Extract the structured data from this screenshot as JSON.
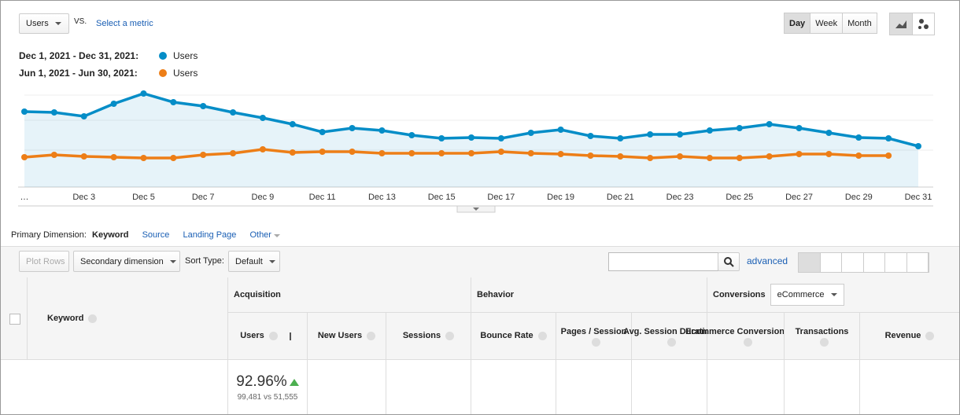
{
  "controls": {
    "metric": "Users",
    "vs": "VS.",
    "select_metric": "Select a metric",
    "periods": [
      "Day",
      "Week",
      "Month"
    ],
    "active_period": "Day"
  },
  "chart_data": {
    "type": "line",
    "categories": [
      "…",
      null,
      "Dec 3",
      null,
      "Dec 5",
      null,
      "Dec 7",
      null,
      "Dec 9",
      null,
      "Dec 11",
      null,
      "Dec 13",
      null,
      "Dec 15",
      null,
      "Dec 17",
      null,
      "Dec 19",
      null,
      "Dec 21",
      null,
      "Dec 23",
      null,
      "Dec 25",
      null,
      "Dec 27",
      null,
      "Dec 29",
      null,
      "Dec 31"
    ],
    "series": [
      {
        "name": "Users",
        "range": "Dec 1, 2021 - Dec 31, 2021:",
        "color": "#058dc7",
        "area": true,
        "values": [
          96,
          95,
          90,
          106,
          119,
          108,
          103,
          95,
          88,
          80,
          70,
          75,
          72,
          66,
          62,
          63,
          62,
          69,
          73,
          65,
          62,
          67,
          67,
          72,
          75,
          80,
          75,
          69,
          63,
          62,
          52
        ]
      },
      {
        "name": "Users",
        "range": "Jun 1, 2021 - Jun 30, 2021:",
        "color": "#ed7e17",
        "area": false,
        "values": [
          38,
          41,
          39,
          38,
          37,
          37,
          41,
          43,
          48,
          44,
          45,
          45,
          43,
          43,
          43,
          43,
          45,
          43,
          42,
          40,
          39,
          37,
          39,
          37,
          37,
          39,
          42,
          42,
          40,
          40,
          null
        ]
      }
    ],
    "ylim": [
      0,
      137
    ]
  },
  "dimensions": {
    "label": "Primary Dimension:",
    "active": "Keyword",
    "links": [
      "Source",
      "Landing Page",
      "Other"
    ]
  },
  "toolbar": {
    "plot_rows": "Plot Rows",
    "secondary": "Secondary dimension",
    "sort_label": "Sort Type:",
    "sort_value": "Default",
    "advanced": "advanced"
  },
  "table": {
    "keyword": "Keyword",
    "groups": [
      "Acquisition",
      "Behavior",
      "Conversions"
    ],
    "conversion_select": "eCommerce",
    "columns": [
      "Users",
      "New Users",
      "Sessions",
      "Bounce Rate",
      "Pages / Session",
      "Avg. Session Duration",
      "Ecommerce Conversion Rate",
      "Transactions",
      "Revenue"
    ],
    "total": {
      "change": "92.96%",
      "compare": "99,481 vs 51,555"
    }
  }
}
